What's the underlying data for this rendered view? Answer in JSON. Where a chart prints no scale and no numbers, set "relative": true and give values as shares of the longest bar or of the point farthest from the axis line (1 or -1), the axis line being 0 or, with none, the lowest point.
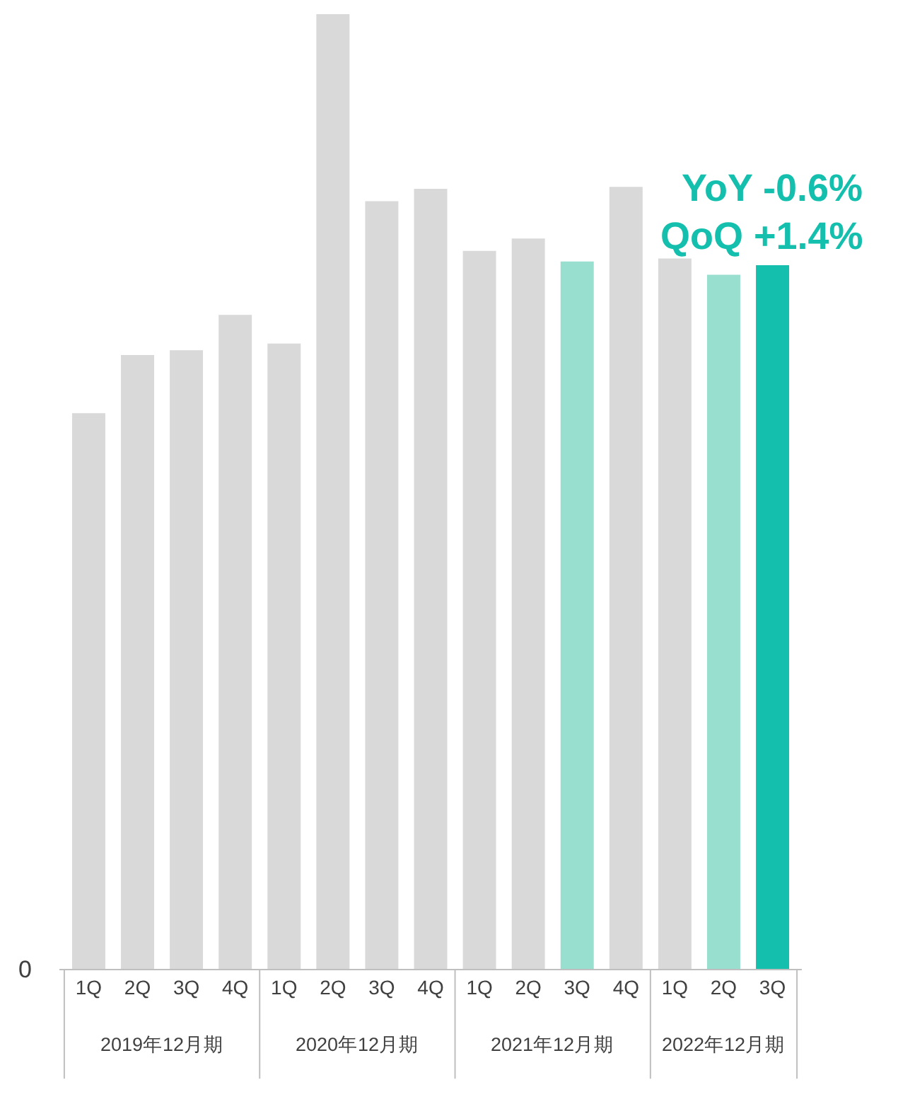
{
  "chart_data": {
    "type": "bar",
    "relative": true,
    "categories": [
      "1Q",
      "2Q",
      "3Q",
      "4Q",
      "1Q",
      "2Q",
      "3Q",
      "4Q",
      "1Q",
      "2Q",
      "3Q",
      "4Q",
      "1Q",
      "2Q",
      "3Q"
    ],
    "values": [
      0.582,
      0.643,
      0.648,
      0.685,
      0.655,
      1,
      0.804,
      0.817,
      0.752,
      0.765,
      0.741,
      0.819,
      0.744,
      0.727,
      0.737
    ],
    "colors": [
      "#d9d9d9",
      "#d9d9d9",
      "#d9d9d9",
      "#d9d9d9",
      "#d9d9d9",
      "#d9d9d9",
      "#d9d9d9",
      "#d9d9d9",
      "#d9d9d9",
      "#d9d9d9",
      "#99dfd0",
      "#d9d9d9",
      "#d9d9d9",
      "#99dfd0",
      "#14bfad"
    ],
    "annotations": [
      "YoY -0.6%",
      "QoQ +1.4%",
      "0",
      "2019年12月期",
      "2020年12月期",
      "2021年12月期",
      "2022年12月期"
    ],
    "grid": false,
    "legend": false
  }
}
